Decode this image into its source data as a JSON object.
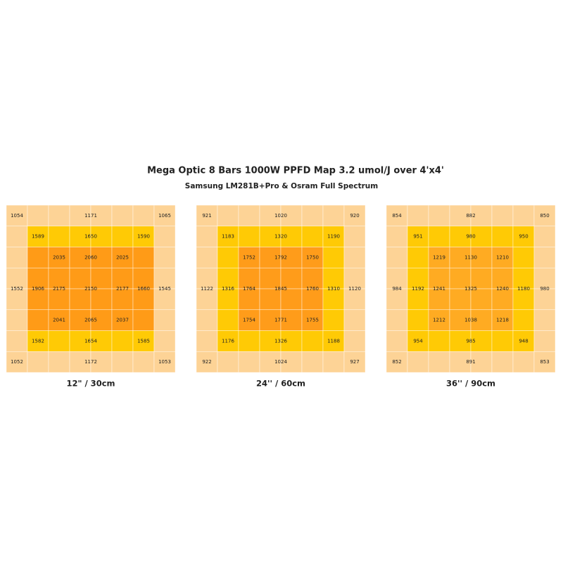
{
  "header": {
    "title": "Mega Optic 8 Bars 1000W PPFD Map 3.2 umol/J over 4'x4'",
    "subtitle": "Samsung LM281B+Pro & Osram Full Spectrum"
  },
  "maps": [
    {
      "label": "12\" / 30cm",
      "rows": [
        [
          1054,
          1171,
          1065
        ],
        [
          1589,
          1650,
          1590
        ],
        [
          2035,
          2060,
          2025
        ],
        [
          1552,
          1906,
          2175,
          2150,
          2177,
          1660,
          1545
        ],
        [
          2041,
          2065,
          2037
        ],
        [
          1582,
          1654,
          1585
        ],
        [
          1052,
          1172,
          1053
        ]
      ]
    },
    {
      "label": "24'' / 60cm",
      "rows": [
        [
          921,
          1020,
          920
        ],
        [
          1183,
          1320,
          1190
        ],
        [
          1752,
          1792,
          1750
        ],
        [
          1122,
          1316,
          1764,
          1845,
          1760,
          1310,
          1120
        ],
        [
          1754,
          1771,
          1755
        ],
        [
          1176,
          1326,
          1188
        ],
        [
          922,
          1024,
          927
        ]
      ]
    },
    {
      "label": "36'' / 90cm",
      "rows": [
        [
          854,
          882,
          850
        ],
        [
          951,
          980,
          950
        ],
        [
          1219,
          1130,
          1210
        ],
        [
          984,
          1192,
          1241,
          1325,
          1240,
          1180,
          980
        ],
        [
          1212,
          1038,
          1218
        ],
        [
          954,
          985,
          948
        ],
        [
          852,
          891,
          853
        ]
      ]
    }
  ]
}
